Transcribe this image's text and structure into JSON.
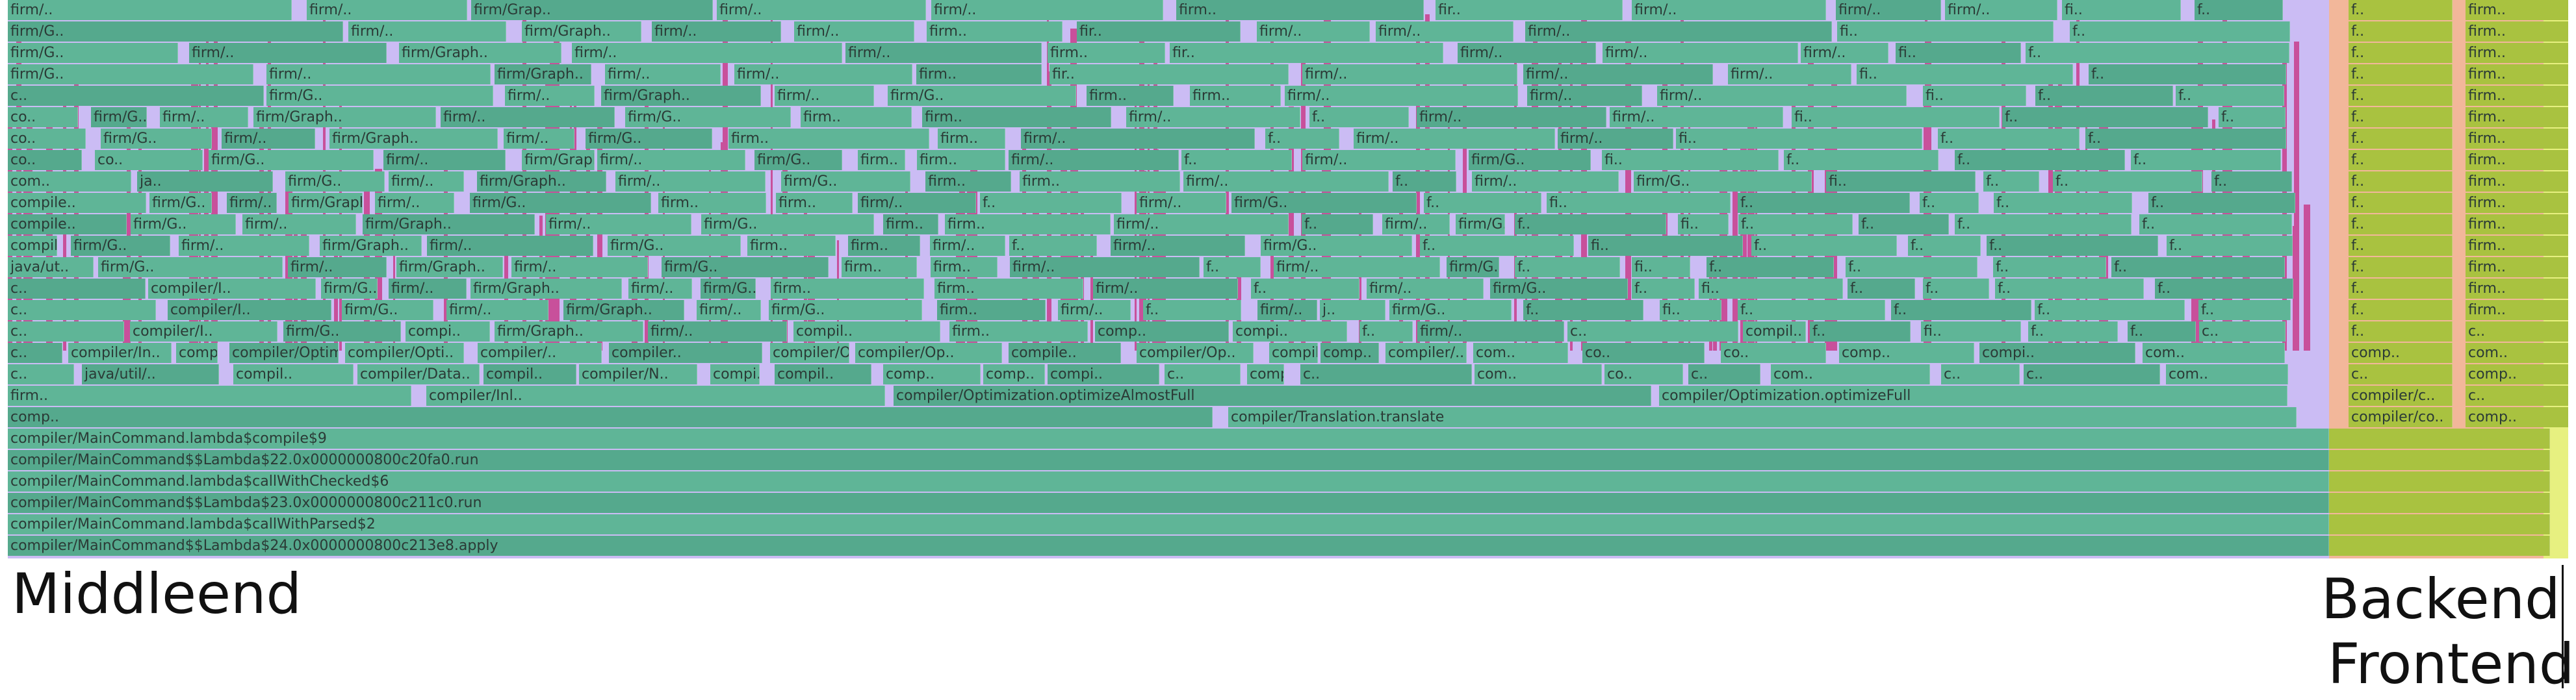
{
  "flamegraph": {
    "stack_bottom_up": [
      "compiler/MainCommand$$Lambda$24.0x0000000800c213e8.apply",
      "compiler/MainCommand.lambda$callWithParsed$2",
      "compiler/MainCommand$$Lambda$23.0x0000000800c211c0.run",
      "compiler/MainCommand.lambda$callWithChecked$6",
      "compiler/MainCommand$$Lambda$22.0x0000000800c20fa0.run",
      "compiler/MainCommand.lambda$compile$9"
    ],
    "level7": [
      "comp..",
      "compiler/Translation.translate",
      "compiler/co..",
      "comp.."
    ],
    "level8": [
      "firm..",
      "compiler/Inl..",
      "compiler/Optimization.optimizeAlmostFull",
      "compiler/Optimization.optimizeFull",
      "compiler/c..",
      "c.."
    ],
    "level9": [
      "c..",
      "java/util/..",
      "compil..",
      "compiler/Data..",
      "compil..",
      "compiler/N..",
      "compi..",
      "compil..",
      "comp..",
      "comp..",
      "compi..",
      "c..",
      "compil..",
      "c..",
      "com..",
      "co..",
      "c..",
      "com..",
      "c..",
      "c..",
      "com..",
      "c..",
      "comp.."
    ],
    "level10": [
      "c..",
      "compiler/In..",
      "compiler/Op..",
      "compiler/Optimization.consta..",
      "compiler/Opti..",
      "compiler/..",
      "compiler..",
      "compiler/Opt..",
      "compiler/Op..",
      "compile..",
      "compiler/Op..",
      "compiler/Opt..",
      "comp..",
      "compiler/..",
      "com..",
      "co..",
      "co..",
      "comp..",
      "compi..",
      "com..",
      "comp..",
      "com.."
    ],
    "level11": [
      "c..",
      "compiler/I..",
      "firm/G..",
      "compi..",
      "firm/Graph..",
      "firm/..",
      "compil..",
      "firm..",
      "comp..",
      "compi..",
      "f..",
      "firm/..",
      "c..",
      "compil..",
      "f..",
      "fi..",
      "f..",
      "f..",
      "c..",
      "f..",
      "c.."
    ],
    "level12": [
      "c..",
      "compiler/I..",
      "firm/G..",
      "firm/..",
      "firm/Graph..",
      "firm/..",
      "firm/G..",
      "firm..",
      "firm/..",
      "f..",
      "firm/..",
      "j..",
      "firm/G..",
      "f..",
      "fi..",
      "f..",
      "f..",
      "f..",
      "f..",
      "f..",
      "firm.."
    ],
    "level13": [
      "c..",
      "compiler/I..",
      "firm/G..",
      "firm/..",
      "firm/Graph..",
      "firm/..",
      "firm/G..",
      "firm..",
      "firm..",
      "firm/..",
      "f..",
      "firm/..",
      "firm/G..",
      "f..",
      "fi..",
      "f..",
      "f..",
      "f..",
      "f..",
      "f..",
      "firm.."
    ],
    "level14": [
      "java/ut..",
      "firm/G..",
      "firm/..",
      "firm/Graph..",
      "firm/..",
      "firm/G..",
      "firm..",
      "firm..",
      "firm/..",
      "f..",
      "firm/..",
      "firm/G..",
      "f..",
      "fi..",
      "f..",
      "f..",
      "f..",
      "f..",
      "f..",
      "firm.."
    ],
    "level15": [
      "compile..",
      "firm/G..",
      "firm/..",
      "firm/Graph..",
      "firm/..",
      "firm/G..",
      "firm..",
      "firm..",
      "firm/..",
      "f..",
      "firm/..",
      "firm/G..",
      "f..",
      "fi..",
      "f..",
      "f..",
      "f..",
      "f..",
      "f..",
      "firm.."
    ],
    "level16": [
      "compile..",
      "firm/G..",
      "firm/..",
      "firm/Graph..",
      "firm/..",
      "firm/G..",
      "firm..",
      "firm..",
      "firm/..",
      "f..",
      "firm/..",
      "firm/G..",
      "f..",
      "fi..",
      "f..",
      "f..",
      "f..",
      "f..",
      "f..",
      "firm.."
    ],
    "level17": [
      "compile..",
      "firm/G..",
      "firm/..",
      "firm/Graph..",
      "firm/..",
      "firm/G..",
      "firm..",
      "firm..",
      "firm/..",
      "f..",
      "firm/..",
      "firm/G..",
      "f..",
      "fi..",
      "f..",
      "f..",
      "f..",
      "f..",
      "f..",
      "firm.."
    ],
    "level18": [
      "com..",
      "ja..",
      "firm/G..",
      "firm/..",
      "firm/Graph..",
      "firm/..",
      "firm/G..",
      "firm..",
      "firm..",
      "firm/..",
      "f..",
      "firm/..",
      "firm/G..",
      "fi..",
      "f..",
      "f..",
      "f..",
      "f..",
      "firm.."
    ],
    "level19": [
      "co..",
      "co..",
      "firm/G..",
      "firm/..",
      "firm/Graph..",
      "firm/..",
      "firm/G..",
      "firm..",
      "firm..",
      "firm/..",
      "f..",
      "firm/..",
      "firm/G..",
      "fi..",
      "f..",
      "f..",
      "f..",
      "f..",
      "firm.."
    ],
    "level20": [
      "co..",
      "firm/G..",
      "firm/..",
      "firm/Graph..",
      "firm/..",
      "firm/G..",
      "firm..",
      "firm..",
      "firm/..",
      "f..",
      "firm/..",
      "firm/..",
      "fi..",
      "f..",
      "f..",
      "f..",
      "firm.."
    ],
    "level21": [
      "co..",
      "firm/G..",
      "firm/..",
      "firm/Graph..",
      "firm/..",
      "firm/G..",
      "firm..",
      "firm..",
      "firm/..",
      "f..",
      "firm/..",
      "firm/..",
      "fi..",
      "f..",
      "f..",
      "f..",
      "firm.."
    ],
    "level22": [
      "c..",
      "firm/G..",
      "firm/..",
      "firm/Graph..",
      "firm/..",
      "firm/G..",
      "firm..",
      "firm..",
      "firm/..",
      "firm/..",
      "firm/..",
      "fi..",
      "f..",
      "f..",
      "f..",
      "firm.."
    ],
    "level23": [
      "firm/G..",
      "firm/..",
      "firm/Graph..",
      "firm/..",
      "firm/..",
      "firm..",
      "fir..",
      "firm/..",
      "firm/..",
      "firm/..",
      "fi..",
      "f..",
      "f..",
      "firm.."
    ],
    "level24": [
      "firm/G..",
      "firm/..",
      "firm/Graph..",
      "firm/..",
      "firm/..",
      "firm..",
      "fir..",
      "firm/..",
      "firm/..",
      "firm/..",
      "fi..",
      "f..",
      "f..",
      "firm.."
    ],
    "level25": [
      "firm/G..",
      "firm/..",
      "firm/Graph..",
      "firm/..",
      "firm/..",
      "firm..",
      "fir..",
      "firm/..",
      "firm/..",
      "firm/..",
      "fi..",
      "f..",
      "f..",
      "firm.."
    ],
    "level26": [
      "firm/..",
      "firm/..",
      "firm/Grap..",
      "firm/..",
      "firm/..",
      "firm..",
      "fir..",
      "firm/..",
      "firm/..",
      "firm/..",
      "fi..",
      "f..",
      "f..",
      "firm.."
    ]
  },
  "phases": {
    "middleend": "Middleend",
    "backend": "Backend",
    "frontend": "Frontend"
  },
  "colors": {
    "middleend_frame": "#5fb597",
    "middleend_frame_dark": "#55a98d",
    "backend_frame": "#a9c240",
    "backend_bg": "#f2b79a",
    "frontend_bg": "#e7f080",
    "gap_lavender": "#cbbcf4",
    "leaf_magenta": "#c8509b"
  }
}
